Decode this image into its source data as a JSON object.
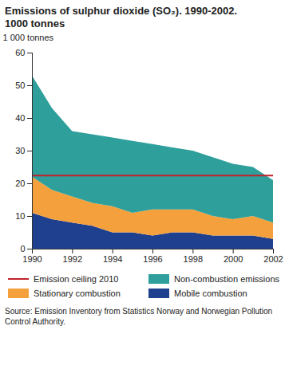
{
  "chart_data": {
    "type": "area",
    "stacked": true,
    "title": "Emissions of sulphur dioxide (SO₂). 1990-2002.",
    "subtitle": "1000 tonnes",
    "y_label": "1 000 tonnes",
    "source": "Source: Emission Inventory from Statistics Norway and Norwegian Pollution Control Authority.",
    "x": [
      1990,
      1991,
      1992,
      1993,
      1994,
      1995,
      1996,
      1997,
      1998,
      1999,
      2000,
      2001,
      2002
    ],
    "xlim": [
      1990,
      2002
    ],
    "xticks": [
      1990,
      1992,
      1994,
      1996,
      1998,
      2000,
      2002
    ],
    "ylim": [
      0,
      60
    ],
    "yticks": [
      0,
      10,
      20,
      30,
      40,
      50,
      60
    ],
    "grid": false,
    "series": [
      {
        "name": "Mobile combustion",
        "color": "#1f3f8f",
        "type": "area",
        "values": [
          11,
          9,
          8,
          7,
          5,
          5,
          4,
          5,
          5,
          4,
          4,
          4,
          3
        ]
      },
      {
        "name": "Stationary combustion",
        "color": "#f4a03c",
        "type": "area",
        "values": [
          11,
          9,
          8,
          7,
          8,
          6,
          8,
          7,
          7,
          6,
          5,
          6,
          5
        ]
      },
      {
        "name": "Non-combustion emissions",
        "color": "#2e9f9b",
        "type": "area",
        "values": [
          31,
          25,
          20,
          21,
          21,
          22,
          20,
          19,
          18,
          18,
          17,
          15,
          13
        ]
      },
      {
        "name": "Emission ceiling 2010",
        "color": "#c0232b",
        "type": "line",
        "values": [
          22.5,
          22.5,
          22.5,
          22.5,
          22.5,
          22.5,
          22.5,
          22.5,
          22.5,
          22.5,
          22.5,
          22.5,
          22.5
        ]
      }
    ]
  }
}
